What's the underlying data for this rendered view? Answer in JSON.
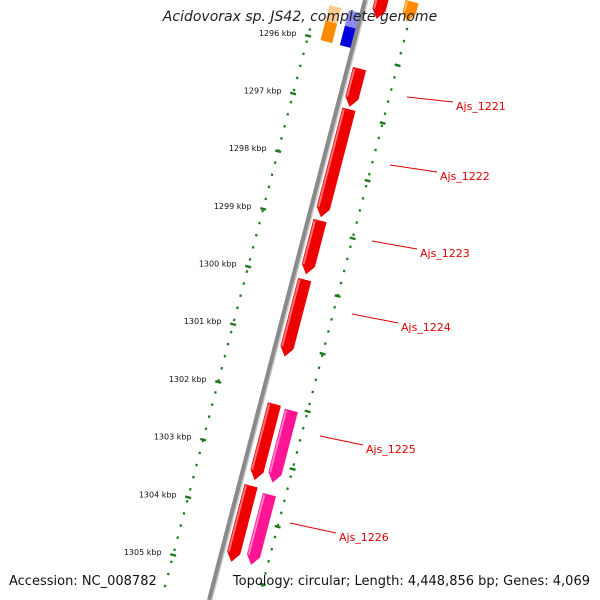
{
  "title": "Acidovorax sp. JS42, complete genome",
  "accession": "Accession: NC_008782",
  "summary": "Topology: circular; Length: 4,448,856 bp; Genes: 4,069",
  "colors": {
    "backbone": "#8a8a8a",
    "tick": "#1f7a1f",
    "gene_forward": "#ee0000",
    "gene_label": "#dd0000",
    "gene_pink": "#ff1493",
    "gene_orange": "#ff8c00",
    "gene_blue": "#0000dd"
  },
  "ticks": [
    {
      "label": "1296 kbp"
    },
    {
      "label": "1297 kbp"
    },
    {
      "label": "1298 kbp"
    },
    {
      "label": "1299 kbp"
    },
    {
      "label": "1300 kbp"
    },
    {
      "label": "1301 kbp"
    },
    {
      "label": "1302 kbp"
    },
    {
      "label": "1303 kbp"
    },
    {
      "label": "1304 kbp"
    },
    {
      "label": "1305 kbp"
    }
  ],
  "genes": [
    {
      "label": "Ajs_1221",
      "strand": "forward"
    },
    {
      "label": "Ajs_1222",
      "strand": "forward"
    },
    {
      "label": "Ajs_1223",
      "strand": "forward"
    },
    {
      "label": "Ajs_1224",
      "strand": "forward"
    },
    {
      "label": "Ajs_1225",
      "strand": "forward"
    },
    {
      "label": "Ajs_1226",
      "strand": "forward"
    }
  ]
}
